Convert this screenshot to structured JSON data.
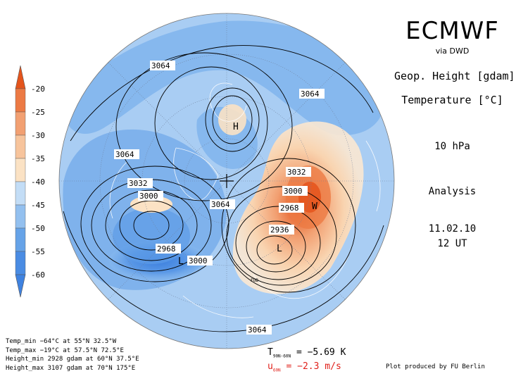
{
  "header": {
    "title": "ECMWF",
    "via": "via DWD",
    "param1": "Geop. Height [gdam]",
    "param2": "Temperature [°C]",
    "level": "10 hPa",
    "analysis": "Analysis",
    "date": "11.02.10",
    "time": "12 UT"
  },
  "colorbar": {
    "labels": [
      "-20",
      "-25",
      "-30",
      "-35",
      "-40",
      "-45",
      "-50",
      "-55",
      "-60"
    ],
    "colors": [
      "#e4541c",
      "#ec7a44",
      "#f2a072",
      "#f7c49c",
      "#fbe2c4",
      "#c3ddf6",
      "#93c0ef",
      "#66a3e8",
      "#3f82e0",
      "#3f82e0"
    ]
  },
  "contour_labels": [
    "3064",
    "3064",
    "3064",
    "3064",
    "3032",
    "3000",
    "2968",
    "3000",
    "3032",
    "3000",
    "2968",
    "2936",
    "3064"
  ],
  "pressure_centers": [
    "H",
    "L",
    "L",
    "W"
  ],
  "station_marker": "FUB",
  "stats": {
    "temp_min": "Temp_min −64°C at 55°N 32.5°W",
    "temp_max": "Temp_max −19°C at 57.5°N 72.5°E",
    "height_min": "Height_min 2928 gdam at 60°N 37.5°E",
    "height_max": "Height_max 3107 gdam at 70°N 175°E"
  },
  "means": {
    "t_symbol": "T",
    "t_sub": "90N-60N",
    "t_value": "= −5.69 K",
    "u_symbol": "u",
    "u_sub": "60N",
    "u_value": "= −2.3 m/s"
  },
  "credit": "Plot produced by FU Berlin",
  "colors": {
    "ocean_base": "#a9cdf3",
    "cold_core": "#3f82e0",
    "warm_core": "#e4541c",
    "unit_red": "#e0201a"
  }
}
